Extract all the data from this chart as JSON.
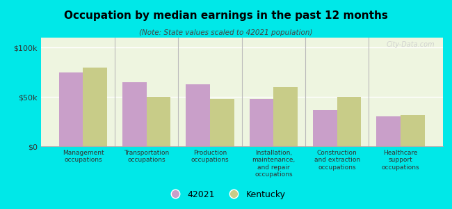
{
  "title": "Occupation by median earnings in the past 12 months",
  "subtitle": "(Note: State values scaled to 42021 population)",
  "categories": [
    "Management\noccupations",
    "Transportation\noccupations",
    "Production\noccupations",
    "Installation,\nmaintenance,\nand repair\noccupations",
    "Construction\nand extraction\noccupations",
    "Healthcare\nsupport\noccupations"
  ],
  "values_42021": [
    75000,
    65000,
    63000,
    48000,
    37000,
    30000
  ],
  "values_kentucky": [
    80000,
    50000,
    48000,
    60000,
    50000,
    32000
  ],
  "color_42021": "#c99fc9",
  "color_kentucky": "#c8cc88",
  "background_chart": "#eef5e0",
  "background_fig": "#00e8e8",
  "ylim": [
    0,
    110000
  ],
  "yticks": [
    0,
    50000,
    100000
  ],
  "ytick_labels": [
    "$0",
    "$50k",
    "$100k"
  ],
  "legend_label_42021": "42021",
  "legend_label_kentucky": "Kentucky",
  "watermark": "City-Data.com"
}
